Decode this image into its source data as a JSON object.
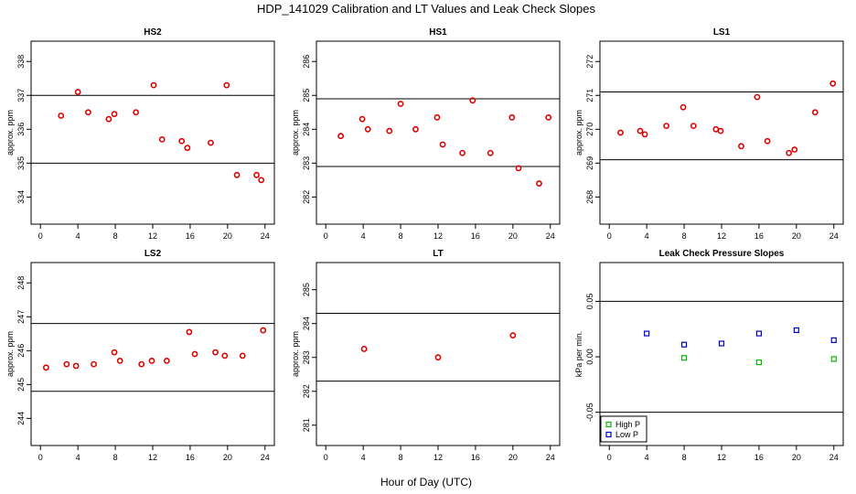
{
  "title": "HDP_141029  Calibration and LT Values and Leak Check Slopes",
  "xlabel": "Hour of Day (UTC)",
  "colors": {
    "cal": "#e00000",
    "high_p": "#00bb00",
    "low_p": "#0000cc",
    "axis": "#000000"
  },
  "chart_data": [
    {
      "type": "scatter",
      "title": "HS2",
      "ylabel": "approx. ppm",
      "xlim": [
        -1,
        25
      ],
      "ylim": [
        333.2,
        338.6
      ],
      "xticks": [
        "0",
        "4",
        "8",
        "12",
        "16",
        "20",
        "24"
      ],
      "yticks": [
        "334",
        "335",
        "336",
        "337",
        "338"
      ],
      "hlines": [
        337.0,
        335.0
      ],
      "series": [
        {
          "marker": "circle",
          "points": [
            [
              2.2,
              336.4
            ],
            [
              4.0,
              337.1
            ],
            [
              5.1,
              336.5
            ],
            [
              7.3,
              336.3
            ],
            [
              7.9,
              336.45
            ],
            [
              10.2,
              336.5
            ],
            [
              12.1,
              337.3
            ],
            [
              13.0,
              335.7
            ],
            [
              15.1,
              335.65
            ],
            [
              15.7,
              335.45
            ],
            [
              18.2,
              335.6
            ],
            [
              19.9,
              337.3
            ],
            [
              21.0,
              334.65
            ],
            [
              23.1,
              334.65
            ],
            [
              23.6,
              334.5
            ]
          ]
        }
      ]
    },
    {
      "type": "scatter",
      "title": "HS1",
      "ylabel": "approx. ppm",
      "xlim": [
        -1,
        25
      ],
      "ylim": [
        281.2,
        286.6
      ],
      "xticks": [
        "0",
        "4",
        "8",
        "12",
        "16",
        "20",
        "24"
      ],
      "yticks": [
        "282",
        "283",
        "284",
        "285",
        "286"
      ],
      "hlines": [
        284.9,
        282.9
      ],
      "series": [
        {
          "marker": "circle",
          "points": [
            [
              1.6,
              283.8
            ],
            [
              3.9,
              284.3
            ],
            [
              4.5,
              284.0
            ],
            [
              6.8,
              283.95
            ],
            [
              8.0,
              284.75
            ],
            [
              9.6,
              284.0
            ],
            [
              11.9,
              284.35
            ],
            [
              12.5,
              283.55
            ],
            [
              14.6,
              283.3
            ],
            [
              15.7,
              284.85
            ],
            [
              17.6,
              283.3
            ],
            [
              19.9,
              284.35
            ],
            [
              20.6,
              282.85
            ],
            [
              22.8,
              282.4
            ],
            [
              23.8,
              284.35
            ]
          ]
        }
      ]
    },
    {
      "type": "scatter",
      "title": "LS1",
      "ylabel": "approx. ppm",
      "xlim": [
        -1,
        25
      ],
      "ylim": [
        267.2,
        272.6
      ],
      "xticks": [
        "0",
        "4",
        "8",
        "12",
        "16",
        "20",
        "24"
      ],
      "yticks": [
        "268",
        "269",
        "270",
        "271",
        "272"
      ],
      "hlines": [
        271.1,
        269.1
      ],
      "series": [
        {
          "marker": "circle",
          "points": [
            [
              1.2,
              269.9
            ],
            [
              3.3,
              269.95
            ],
            [
              3.8,
              269.85
            ],
            [
              6.1,
              270.1
            ],
            [
              7.9,
              270.65
            ],
            [
              9.0,
              270.1
            ],
            [
              11.4,
              270.0
            ],
            [
              11.9,
              269.95
            ],
            [
              14.1,
              269.5
            ],
            [
              15.8,
              270.95
            ],
            [
              16.9,
              269.65
            ],
            [
              19.2,
              269.3
            ],
            [
              19.8,
              269.4
            ],
            [
              22.0,
              270.5
            ],
            [
              23.9,
              271.35
            ]
          ]
        }
      ]
    },
    {
      "type": "scatter",
      "title": "LS2",
      "ylabel": "approx. ppm",
      "xlim": [
        -1,
        25
      ],
      "ylim": [
        243.2,
        248.6
      ],
      "xticks": [
        "0",
        "4",
        "8",
        "12",
        "16",
        "20",
        "24"
      ],
      "yticks": [
        "244",
        "245",
        "246",
        "247",
        "248"
      ],
      "hlines": [
        246.8,
        244.8
      ],
      "series": [
        {
          "marker": "circle",
          "points": [
            [
              0.6,
              245.5
            ],
            [
              2.8,
              245.6
            ],
            [
              3.8,
              245.55
            ],
            [
              5.7,
              245.6
            ],
            [
              7.9,
              245.95
            ],
            [
              8.5,
              245.7
            ],
            [
              10.8,
              245.6
            ],
            [
              11.9,
              245.7
            ],
            [
              13.5,
              245.7
            ],
            [
              15.9,
              246.55
            ],
            [
              16.5,
              245.9
            ],
            [
              18.7,
              245.95
            ],
            [
              19.7,
              245.85
            ],
            [
              21.6,
              245.85
            ],
            [
              23.8,
              246.6
            ]
          ]
        }
      ]
    },
    {
      "type": "scatter",
      "title": "LT",
      "ylabel": "approx. ppm",
      "xlim": [
        -1,
        25
      ],
      "ylim": [
        280.4,
        285.8
      ],
      "xticks": [
        "0",
        "4",
        "8",
        "12",
        "16",
        "20",
        "24"
      ],
      "yticks": [
        "281",
        "282",
        "283",
        "284",
        "285"
      ],
      "hlines": [
        284.3,
        282.3
      ],
      "series": [
        {
          "marker": "circle",
          "points": [
            [
              4.1,
              283.25
            ],
            [
              12.0,
              283.0
            ],
            [
              20.0,
              283.65
            ]
          ]
        }
      ]
    },
    {
      "type": "scatter",
      "title": "Leak Check Pressure Slopes",
      "ylabel": "kPa per min.",
      "xlim": [
        -1,
        25
      ],
      "ylim": [
        -0.08,
        0.085
      ],
      "xticks": [
        "0",
        "4",
        "8",
        "12",
        "16",
        "20",
        "24"
      ],
      "yticks": [
        "-0.05",
        "0.00",
        "0.05"
      ],
      "hlines": [
        0.05,
        -0.05
      ],
      "legend": {
        "position": "bottom-left"
      },
      "series": [
        {
          "name": "High P",
          "marker": "square",
          "points": [
            [
              8,
              -0.001
            ],
            [
              16,
              -0.005
            ],
            [
              24,
              -0.002
            ]
          ]
        },
        {
          "name": "Low P",
          "marker": "square",
          "points": [
            [
              4,
              0.021
            ],
            [
              8,
              0.011
            ],
            [
              12,
              0.012
            ],
            [
              16,
              0.021
            ],
            [
              20,
              0.024
            ],
            [
              24,
              0.015
            ]
          ]
        }
      ]
    }
  ]
}
